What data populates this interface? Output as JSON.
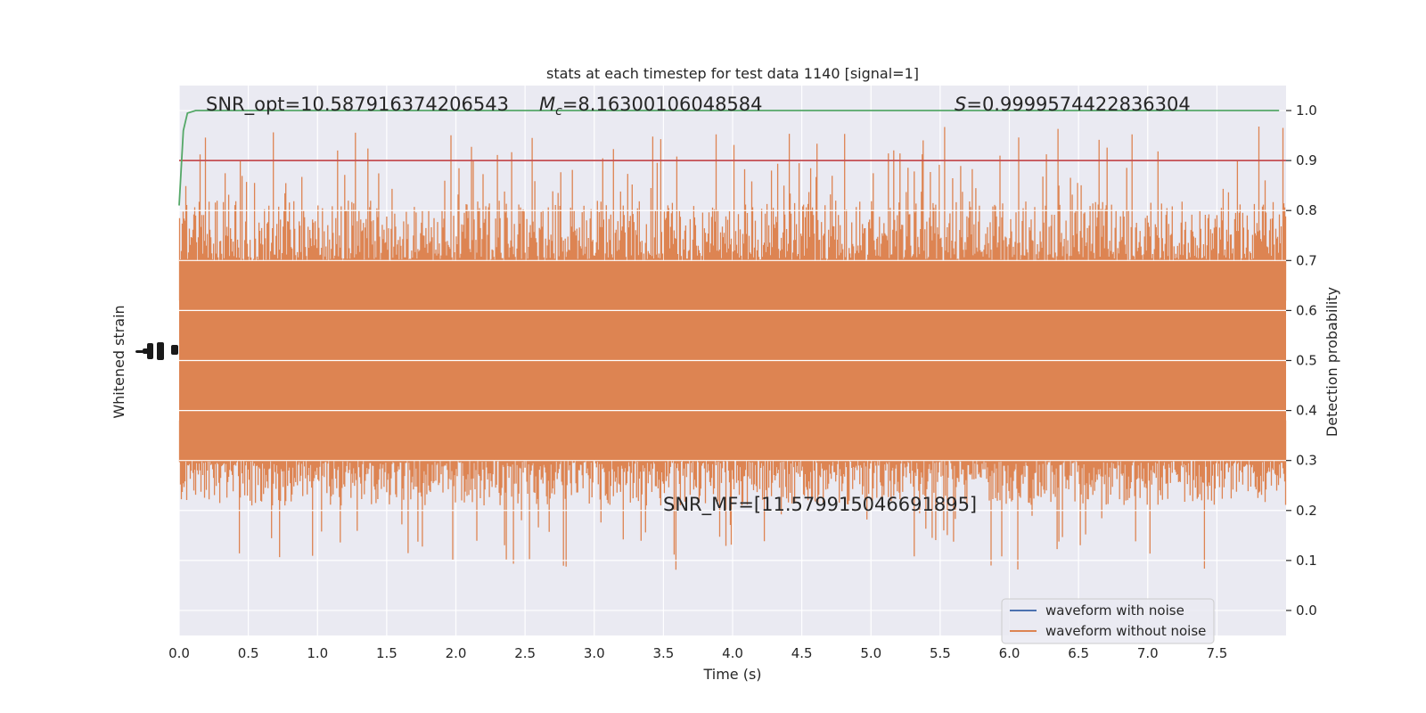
{
  "chart_data": {
    "type": "line",
    "title": "stats at each timestep for test data 1140 [signal=1]",
    "xlabel": "Time (s)",
    "ylabel_left": "Whitened strain",
    "ylabel_right": "Detection probability",
    "xlim": [
      0.0,
      8.0
    ],
    "ylim_right": [
      -0.05,
      1.05
    ],
    "x_ticks": [
      "0.0",
      "0.5",
      "1.0",
      "1.5",
      "2.0",
      "2.5",
      "3.0",
      "3.5",
      "4.0",
      "4.5",
      "5.0",
      "5.5",
      "6.0",
      "6.5",
      "7.0",
      "7.5"
    ],
    "x_tick_values": [
      0.0,
      0.5,
      1.0,
      1.5,
      2.0,
      2.5,
      3.0,
      3.5,
      4.0,
      4.5,
      5.0,
      5.5,
      6.0,
      6.5,
      7.0,
      7.5
    ],
    "y_right_ticks": [
      "0.0",
      "0.1",
      "0.2",
      "0.3",
      "0.4",
      "0.5",
      "0.6",
      "0.7",
      "0.8",
      "0.9",
      "1.0"
    ],
    "y_right_tick_values": [
      0.0,
      0.1,
      0.2,
      0.3,
      0.4,
      0.5,
      0.6,
      0.7,
      0.8,
      0.9,
      1.0
    ],
    "grid": true,
    "legend_position": "bottom-right",
    "series": [
      {
        "name": "waveform with noise",
        "color": "#4c72b0"
      },
      {
        "name": "waveform without noise",
        "color": "#dd8452"
      }
    ],
    "detection_probability": {
      "color": "#55a868",
      "x": [
        0.0,
        0.03,
        0.06,
        0.12,
        7.95
      ],
      "y": [
        0.81,
        0.96,
        0.995,
        1.0,
        1.0
      ]
    },
    "threshold": {
      "value": 0.9,
      "color": "#c44e52"
    },
    "annotations": {
      "snr_opt": "SNR_opt=10.587916374206543",
      "mc_symbol": "M",
      "mc_subscript": "c",
      "mc_value": "=8.16300106048584",
      "s_symbol": "S",
      "s_value": "=0.9999574422836304",
      "snr_mf": "SNR_MF=[11.579915046691895]"
    },
    "style": {
      "axes_bg": "#eaeaf2",
      "grid_color": "#ffffff",
      "text_color": "#262626"
    }
  }
}
